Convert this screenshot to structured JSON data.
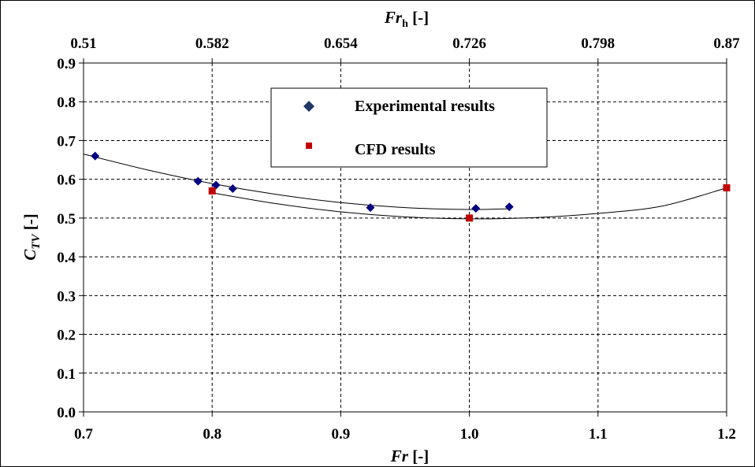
{
  "chart_data": {
    "type": "scatter",
    "x_axis": {
      "label_main": "Fr",
      "label_unit": " [-]",
      "range": [
        0.7,
        1.2
      ],
      "ticks": [
        0.7,
        0.8,
        0.9,
        1.0,
        1.1,
        1.2
      ],
      "tick_labels": [
        "0.7",
        "0.8",
        "0.9",
        "1.0",
        "1.1",
        "1.2"
      ]
    },
    "x2_axis": {
      "label_main": "Fr",
      "label_sub": "h",
      "label_unit": " [-]",
      "tick_labels": [
        "0.51",
        "0.582",
        "0.654",
        "0.726",
        "0.798",
        "0.87"
      ]
    },
    "y_axis": {
      "label_main": "C",
      "label_sub": "TV",
      "label_unit": " [-]",
      "range": [
        0.0,
        0.9
      ],
      "ticks": [
        0.0,
        0.1,
        0.2,
        0.3,
        0.4,
        0.5,
        0.6,
        0.7,
        0.8,
        0.9
      ],
      "tick_labels": [
        "0.0",
        "0.1",
        "0.2",
        "0.3",
        "0.4",
        "0.5",
        "0.6",
        "0.7",
        "0.8",
        "0.9"
      ]
    },
    "grid": true,
    "legend_position": "top-center",
    "series": [
      {
        "name": "Experimental results",
        "marker": "diamond",
        "color": "#000080",
        "points": [
          [
            0.709,
            0.66
          ],
          [
            0.789,
            0.595
          ],
          [
            0.803,
            0.585
          ],
          [
            0.816,
            0.576
          ],
          [
            0.923,
            0.527
          ],
          [
            1.005,
            0.525
          ],
          [
            1.031,
            0.529
          ]
        ],
        "trend": [
          [
            0.7,
            0.665
          ],
          [
            0.75,
            0.624
          ],
          [
            0.8,
            0.589
          ],
          [
            0.85,
            0.561
          ],
          [
            0.9,
            0.54
          ],
          [
            0.95,
            0.527
          ],
          [
            1.0,
            0.522
          ],
          [
            1.031,
            0.524
          ]
        ]
      },
      {
        "name": "CFD results",
        "marker": "square",
        "color": "#c00000",
        "points": [
          [
            0.8,
            0.57
          ],
          [
            1.0,
            0.5
          ],
          [
            1.2,
            0.578
          ]
        ],
        "trend": [
          [
            0.8,
            0.565
          ],
          [
            0.85,
            0.537
          ],
          [
            0.9,
            0.516
          ],
          [
            0.95,
            0.503
          ],
          [
            1.0,
            0.498
          ],
          [
            1.05,
            0.501
          ],
          [
            1.1,
            0.512
          ],
          [
            1.15,
            0.531
          ],
          [
            1.2,
            0.578
          ]
        ]
      }
    ]
  }
}
